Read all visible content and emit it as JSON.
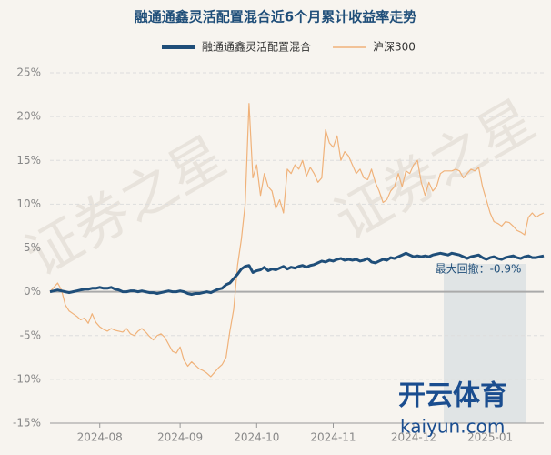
{
  "chart_data": {
    "type": "line",
    "title": "融通通鑫灵活配置混合近6个月累计收益率走势",
    "categories": [
      null,
      null,
      null,
      null,
      null,
      null,
      null,
      null,
      null,
      null,
      null,
      null,
      null,
      "2024-08",
      null,
      null,
      null,
      null,
      null,
      null,
      null,
      null,
      null,
      null,
      null,
      null,
      null,
      null,
      null,
      null,
      null,
      null,
      null,
      null,
      "2024-09",
      null,
      null,
      null,
      null,
      null,
      null,
      null,
      null,
      null,
      null,
      null,
      null,
      null,
      null,
      null,
      null,
      null,
      null,
      null,
      "2024-10",
      null,
      null,
      null,
      null,
      null,
      null,
      null,
      null,
      null,
      null,
      null,
      null,
      null,
      null,
      null,
      null,
      null,
      null,
      null,
      "2024-11",
      null,
      null,
      null,
      null,
      null,
      null,
      null,
      null,
      null,
      null,
      null,
      null,
      null,
      null,
      null,
      null,
      null,
      null,
      null,
      null,
      "2024-12",
      null,
      null,
      null,
      null,
      null,
      null,
      null,
      null,
      null,
      null,
      null,
      null,
      null,
      null,
      null,
      null,
      null,
      null,
      null,
      "2025-01",
      null,
      null,
      null,
      null,
      null,
      null,
      null,
      null,
      null,
      null,
      null,
      null,
      null,
      null
    ],
    "series": [
      {
        "name": "融通通鑫灵活配置混合",
        "color": "#1f4e79",
        "values": [
          0.0,
          0.1,
          0.2,
          0.1,
          0.0,
          -0.1,
          0.0,
          0.1,
          0.2,
          0.3,
          0.3,
          0.4,
          0.4,
          0.5,
          0.4,
          0.4,
          0.5,
          0.3,
          0.2,
          0.0,
          0.0,
          0.1,
          0.1,
          0.0,
          0.1,
          0.0,
          -0.1,
          -0.1,
          -0.2,
          -0.1,
          0.0,
          0.1,
          0.0,
          0.0,
          0.1,
          0.0,
          -0.2,
          -0.3,
          -0.2,
          -0.2,
          -0.1,
          0.0,
          -0.1,
          0.1,
          0.3,
          0.4,
          0.8,
          1.0,
          1.5,
          2.0,
          2.6,
          2.9,
          3.0,
          2.2,
          2.4,
          2.5,
          2.8,
          2.4,
          2.6,
          2.5,
          2.7,
          2.9,
          2.6,
          2.8,
          2.7,
          2.9,
          3.0,
          2.8,
          3.0,
          3.1,
          3.3,
          3.5,
          3.4,
          3.6,
          3.5,
          3.7,
          3.8,
          3.6,
          3.7,
          3.6,
          3.7,
          3.5,
          3.6,
          3.8,
          3.4,
          3.3,
          3.5,
          3.7,
          3.6,
          3.9,
          3.8,
          4.0,
          4.2,
          4.4,
          4.2,
          4.0,
          4.1,
          4.0,
          4.1,
          4.0,
          4.2,
          4.3,
          4.4,
          4.3,
          4.2,
          4.4,
          4.3,
          4.2,
          4.0,
          3.8,
          4.0,
          4.1,
          4.2,
          3.9,
          3.7,
          3.9,
          4.0,
          3.8,
          3.7,
          3.9,
          4.0,
          4.1,
          3.9,
          3.8,
          4.0,
          4.1,
          3.9,
          3.9,
          4.0,
          4.1
        ]
      },
      {
        "name": "沪深300",
        "color": "#f0b27a",
        "values": [
          0,
          0.5,
          1.0,
          0.2,
          -1.5,
          -2.2,
          -2.5,
          -2.8,
          -3.2,
          -3.0,
          -3.6,
          -2.5,
          -3.5,
          -4.0,
          -4.3,
          -4.5,
          -4.2,
          -4.4,
          -4.5,
          -4.6,
          -4.2,
          -4.8,
          -5.0,
          -4.5,
          -4.2,
          -4.6,
          -5.1,
          -5.5,
          -5.0,
          -4.8,
          -5.2,
          -6.0,
          -6.8,
          -7.0,
          -6.3,
          -7.8,
          -8.5,
          -8.0,
          -8.4,
          -8.8,
          -9.0,
          -9.3,
          -9.7,
          -9.2,
          -8.7,
          -8.3,
          -7.5,
          -4.5,
          -2.0,
          3.0,
          6.0,
          10.0,
          21.5,
          13.0,
          14.5,
          11.0,
          13.5,
          12.0,
          11.5,
          9.5,
          10.5,
          9.0,
          14.0,
          13.5,
          14.5,
          14.0,
          15.0,
          13.2,
          14.2,
          13.5,
          12.5,
          13.0,
          18.5,
          17.0,
          16.5,
          17.8,
          15.0,
          16.0,
          15.5,
          14.5,
          13.5,
          14.0,
          13.0,
          12.8,
          14.0,
          12.5,
          11.5,
          10.2,
          10.5,
          11.5,
          12.0,
          13.5,
          12.0,
          13.8,
          13.5,
          14.5,
          15.0,
          12.5,
          11.0,
          12.5,
          11.5,
          12.0,
          13.5,
          13.8,
          13.8,
          13.8,
          14.0,
          13.8,
          13.0,
          13.5,
          14.0,
          13.8,
          14.2,
          12.0,
          10.5,
          9.0,
          8.0,
          7.8,
          7.5,
          8.0,
          7.9,
          7.5,
          7.0,
          6.8,
          6.5,
          8.5,
          9.0,
          8.5,
          8.8,
          9.0
        ]
      }
    ],
    "ylim": [
      -15,
      25
    ],
    "yticks": [
      {
        "value": -15,
        "label": "-15%"
      },
      {
        "value": -10,
        "label": "-10%"
      },
      {
        "value": -5,
        "label": "-5%"
      },
      {
        "value": 0,
        "label": "0%"
      },
      {
        "value": 5,
        "label": "5%"
      },
      {
        "value": 10,
        "label": "10%"
      },
      {
        "value": 15,
        "label": "15%"
      },
      {
        "value": 20,
        "label": "20%"
      },
      {
        "value": 25,
        "label": "25%"
      }
    ],
    "grid": true,
    "annotation": "最大回撤：-0.9%",
    "watermark": "证券之星",
    "logo": {
      "name": "开云体育",
      "site": "kaiyun.com"
    }
  }
}
